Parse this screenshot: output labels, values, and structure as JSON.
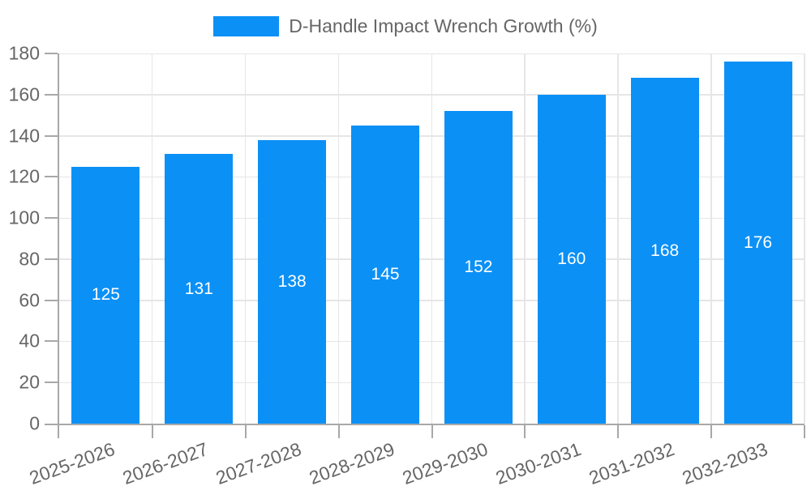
{
  "legend": {
    "label": "D-Handle Impact Wrench Growth (%)"
  },
  "colors": {
    "bar": "#0b90f6",
    "text": "#666666",
    "grid": "#e6e6e6",
    "axis": "#a8a8a8",
    "value_label": "#ffffff",
    "background": "#ffffff"
  },
  "chart_data": {
    "type": "bar",
    "title": "D-Handle Impact Wrench Growth (%)",
    "categories": [
      "2025-2026",
      "2026-2027",
      "2027-2028",
      "2028-2029",
      "2029-2030",
      "2030-2031",
      "2031-2032",
      "2032-2033"
    ],
    "values": [
      125,
      131,
      138,
      145,
      152,
      160,
      168,
      176
    ],
    "xlabel": "",
    "ylabel": "",
    "ylim": [
      0,
      180
    ],
    "ytick_step": 20,
    "yticks": [
      0,
      20,
      40,
      60,
      80,
      100,
      120,
      140,
      160,
      180
    ],
    "grid": true,
    "legend_position": "top",
    "value_labels": "inside-center",
    "x_label_rotation_deg": -20
  }
}
